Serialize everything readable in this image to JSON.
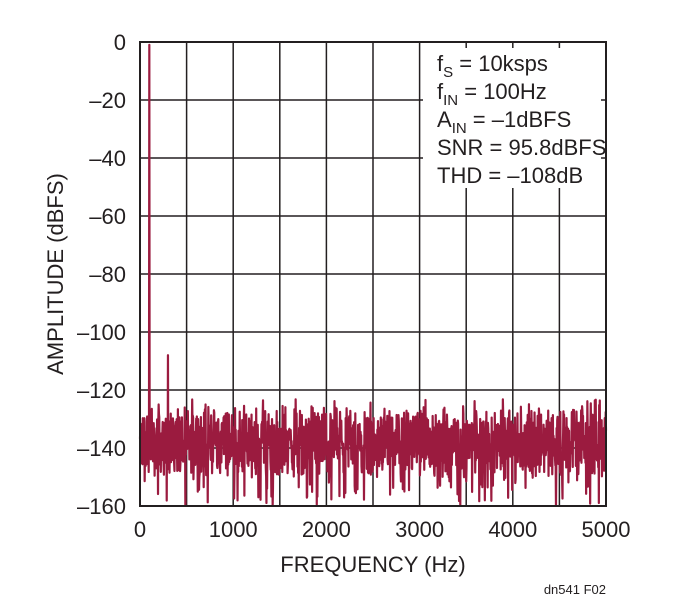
{
  "chart_data": {
    "type": "line",
    "title": "",
    "xlabel": "FREQUENCY (Hz)",
    "ylabel": "AMPLITUDE (dBFS)",
    "xlim": [
      0,
      5000
    ],
    "ylim": [
      -160,
      0
    ],
    "x_ticks": [
      0,
      1000,
      2000,
      3000,
      4000,
      5000
    ],
    "y_ticks": [
      0,
      -20,
      -40,
      -60,
      -80,
      -100,
      -120,
      -140,
      -160
    ],
    "x_tick_labels": [
      "0",
      "1000",
      "2000",
      "3000",
      "4000",
      "5000"
    ],
    "y_tick_labels": [
      "0",
      "–20",
      "–40",
      "–60",
      "–80",
      "–100",
      "–120",
      "–140",
      "–160"
    ],
    "grid": true,
    "line_color": "#9b1b3f",
    "peaks": [
      {
        "x": 100,
        "y": -1
      },
      {
        "x": 200,
        "y": -125
      },
      {
        "x": 300,
        "y": -108
      }
    ],
    "noise_floor": {
      "x_start": 0,
      "x_end": 5000,
      "typical": -138,
      "min": -160,
      "max": -123
    },
    "annotations": [
      {
        "main": "f",
        "sub": "S",
        "rest": " = 10ksps"
      },
      {
        "main": "f",
        "sub": "IN",
        "rest": " = 100Hz"
      },
      {
        "main": "A",
        "sub": "IN",
        "rest": " = –1dBFS"
      },
      {
        "main": "SNR = 95.8dBFS",
        "sub": "",
        "rest": ""
      },
      {
        "main": "THD = –108dB",
        "sub": "",
        "rest": ""
      }
    ],
    "figure_id": "dn541 F02"
  }
}
